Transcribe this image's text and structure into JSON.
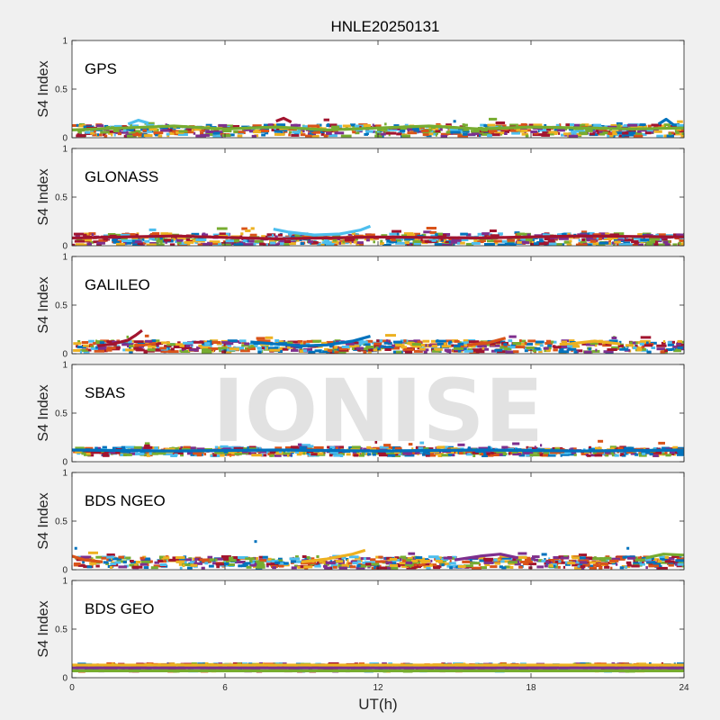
{
  "colors": {
    "background": "#f0f0f0",
    "axes_bg": "#ffffff",
    "axis": "#262626",
    "watermark": "#d9d9d9",
    "series": [
      "#0072bd",
      "#d95319",
      "#edb120",
      "#7e2f8e",
      "#77ac30",
      "#4dbeee",
      "#a2142f"
    ]
  },
  "chart_data": {
    "type": "scatter",
    "title": "HNLE20250131",
    "xlabel": "UT(h)",
    "ylabel": "S4 Index",
    "watermark": "IONISE",
    "xlim": [
      0,
      24
    ],
    "ylim": [
      0,
      1
    ],
    "xticks": [
      "0",
      "6",
      "12",
      "18",
      "24"
    ],
    "yticks": [
      "0",
      "0.5",
      "1"
    ],
    "grid": false,
    "panels": [
      {
        "label": "GPS",
        "base": 0.07,
        "tracks": [
          {
            "x": [
              0,
              2,
              4,
              6,
              8,
              10,
              12,
              14,
              16,
              18,
              20,
              22,
              24
            ],
            "y": [
              0.08,
              0.1,
              0.12,
              0.09,
              0.11,
              0.08,
              0.1,
              0.12,
              0.09,
              0.11,
              0.1,
              0.09,
              0.1
            ]
          },
          {
            "x": [
              2.2,
              2.6,
              3.0
            ],
            "y": [
              0.14,
              0.18,
              0.15
            ]
          },
          {
            "x": [
              8.0,
              8.3,
              8.6
            ],
            "y": [
              0.17,
              0.2,
              0.16
            ]
          },
          {
            "x": [
              23.0,
              23.3,
              23.6
            ],
            "y": [
              0.14,
              0.19,
              0.13
            ]
          }
        ]
      },
      {
        "label": "GLONASS",
        "base": 0.06,
        "tracks": [
          {
            "x": [
              7.9,
              8.5,
              9.5,
              10.5,
              11.3,
              11.7
            ],
            "y": [
              0.17,
              0.14,
              0.11,
              0.12,
              0.16,
              0.2
            ]
          },
          {
            "x": [
              0,
              4,
              8,
              12,
              16,
              20,
              24
            ],
            "y": [
              0.08,
              0.1,
              0.07,
              0.09,
              0.08,
              0.1,
              0.09
            ]
          }
        ]
      },
      {
        "label": "GALILEO",
        "base": 0.07,
        "tracks": [
          {
            "x": [
              1.0,
              1.6,
              2.2,
              2.5,
              2.75
            ],
            "y": [
              0.08,
              0.1,
              0.14,
              0.19,
              0.24
            ]
          },
          {
            "x": [
              7.0,
              8.0,
              9.0,
              10.0,
              11.0,
              11.7
            ],
            "y": [
              0.12,
              0.1,
              0.08,
              0.09,
              0.13,
              0.18
            ]
          },
          {
            "x": [
              15.5,
              16.3,
              17.0
            ],
            "y": [
              0.09,
              0.11,
              0.16
            ]
          },
          {
            "x": [
              19.5,
              20.5,
              21.5
            ],
            "y": [
              0.1,
              0.13,
              0.1
            ]
          }
        ]
      },
      {
        "label": "SBAS",
        "base": 0.1,
        "tracks": [
          {
            "x": [
              0,
              4,
              8,
              12,
              16,
              20,
              24
            ],
            "y": [
              0.12,
              0.11,
              0.12,
              0.11,
              0.12,
              0.11,
              0.12
            ]
          }
        ]
      },
      {
        "label": "BDS NGEO",
        "base": 0.07,
        "tracks": [
          {
            "x": [
              0,
              0.5,
              1.2
            ],
            "y": [
              0.14,
              0.1,
              0.08
            ]
          },
          {
            "x": [
              9.0,
              10.0,
              11.0,
              11.5
            ],
            "y": [
              0.08,
              0.11,
              0.16,
              0.2
            ]
          },
          {
            "x": [
              15.0,
              16.0,
              16.8,
              17.5
            ],
            "y": [
              0.1,
              0.14,
              0.16,
              0.12
            ]
          },
          {
            "x": [
              22.5,
              23.2,
              24.0
            ],
            "y": [
              0.12,
              0.16,
              0.15
            ]
          },
          {
            "x": [
              7.2
            ],
            "y": [
              0.29
            ]
          },
          {
            "x": [
              0.15
            ],
            "y": [
              0.22
            ]
          },
          {
            "x": [
              21.8
            ],
            "y": [
              0.22
            ]
          }
        ]
      },
      {
        "label": "BDS GEO",
        "base": 0.1,
        "tracks": [
          {
            "x": [
              0,
              24
            ],
            "y": [
              0.13,
              0.13
            ]
          },
          {
            "x": [
              0,
              24
            ],
            "y": [
              0.1,
              0.1
            ]
          },
          {
            "x": [
              0,
              24
            ],
            "y": [
              0.07,
              0.07
            ]
          }
        ]
      }
    ]
  }
}
